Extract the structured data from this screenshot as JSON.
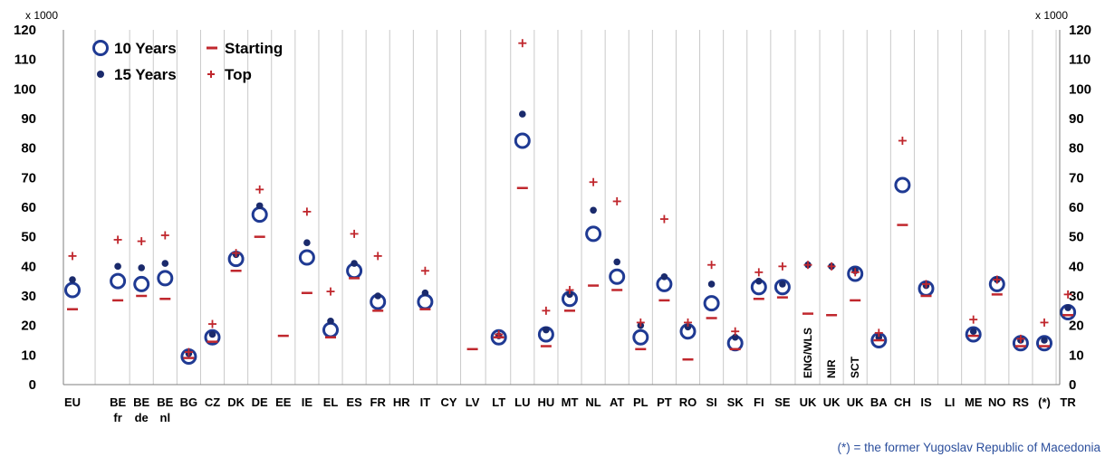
{
  "chart_data": {
    "type": "scatter",
    "unit_left": "x 1000",
    "unit_right": "x 1000",
    "ylim": [
      0,
      120
    ],
    "yticks": [
      0,
      10,
      20,
      30,
      40,
      50,
      60,
      70,
      80,
      90,
      100,
      110,
      120
    ],
    "grid": "vertical",
    "legend_position": "top-left",
    "categories": [
      "EU",
      "BE fr",
      "BE de",
      "BE nl",
      "BG",
      "CZ",
      "DK",
      "DE",
      "EE",
      "IE",
      "EL",
      "ES",
      "FR",
      "HR",
      "IT",
      "CY",
      "LV",
      "LT",
      "LU",
      "HU",
      "MT",
      "NL",
      "AT",
      "PL",
      "PT",
      "RO",
      "SI",
      "SK",
      "FI",
      "SE",
      "UK ENG/WLS",
      "UK NIR",
      "UK SCT",
      "BA",
      "CH",
      "IS",
      "LI",
      "ME",
      "NO",
      "RS",
      "(*)",
      "TR"
    ],
    "category_labels": [
      [
        "EU"
      ],
      [
        "BE",
        "fr"
      ],
      [
        "BE",
        "de"
      ],
      [
        "BE",
        "nl"
      ],
      [
        "BG"
      ],
      [
        "CZ"
      ],
      [
        "DK"
      ],
      [
        "DE"
      ],
      [
        "EE"
      ],
      [
        "IE"
      ],
      [
        "EL"
      ],
      [
        "ES"
      ],
      [
        "FR"
      ],
      [
        "HR"
      ],
      [
        "IT"
      ],
      [
        "CY"
      ],
      [
        "LV"
      ],
      [
        "LT"
      ],
      [
        "LU"
      ],
      [
        "HU"
      ],
      [
        "MT"
      ],
      [
        "NL"
      ],
      [
        "AT"
      ],
      [
        "PL"
      ],
      [
        "PT"
      ],
      [
        "RO"
      ],
      [
        "SI"
      ],
      [
        "SK"
      ],
      [
        "FI"
      ],
      [
        "SE"
      ],
      [
        "UK"
      ],
      [
        "UK"
      ],
      [
        "UK"
      ],
      [
        "BA"
      ],
      [
        "CH"
      ],
      [
        "IS"
      ],
      [
        "LI"
      ],
      [
        "ME"
      ],
      [
        "NO"
      ],
      [
        "RS"
      ],
      [
        "(*)"
      ],
      [
        "TR"
      ]
    ],
    "vertical_annotations": [
      {
        "category_index": 30,
        "text": "ENG/WLS"
      },
      {
        "category_index": 31,
        "text": "NIR"
      },
      {
        "category_index": 32,
        "text": "SCT"
      }
    ],
    "series": [
      {
        "name": "10 Years",
        "marker": "open-circle",
        "color": "#1f3a93",
        "values": [
          32,
          35,
          34,
          36,
          9.5,
          16,
          42.5,
          57.5,
          null,
          43,
          18.5,
          38.5,
          28,
          null,
          28,
          null,
          null,
          16,
          82.5,
          17,
          29,
          51,
          36.5,
          16,
          34,
          18,
          27.5,
          14,
          33,
          33,
          null,
          null,
          37.5,
          15,
          67.5,
          32.5,
          null,
          17,
          34,
          14,
          14,
          24.5
        ]
      },
      {
        "name": "15 Years",
        "marker": "dot",
        "color": "#1a2a6c",
        "values": [
          35.5,
          40,
          39.5,
          41,
          10.5,
          17,
          44,
          60.5,
          null,
          48,
          21.5,
          41,
          30,
          null,
          31,
          null,
          null,
          16.5,
          91.5,
          18.5,
          30.5,
          59,
          41.5,
          20,
          36.5,
          19.5,
          34,
          16,
          35,
          34,
          40.5,
          40,
          38.5,
          16,
          null,
          33.5,
          null,
          18,
          35.5,
          15,
          15,
          26
        ]
      },
      {
        "name": "Starting",
        "marker": "dash",
        "color": "#c0272d",
        "values": [
          25.5,
          28.5,
          30,
          29,
          9,
          14.5,
          38.5,
          50,
          16.5,
          31,
          16,
          36,
          25,
          null,
          25.5,
          null,
          12,
          16,
          66.5,
          13,
          25,
          33.5,
          32,
          12,
          28.5,
          8.5,
          22.5,
          12,
          29,
          29.5,
          24,
          23.5,
          28.5,
          15,
          54,
          30,
          null,
          16.5,
          30.5,
          13,
          13,
          23.5
        ]
      },
      {
        "name": "Top",
        "marker": "plus",
        "color": "#c0272d",
        "values": [
          43.5,
          49,
          48.5,
          50.5,
          11,
          20.5,
          44.5,
          66,
          null,
          58.5,
          31.5,
          51,
          43.5,
          null,
          38.5,
          null,
          null,
          17,
          115.5,
          25,
          32,
          68.5,
          62,
          21,
          56,
          21,
          40.5,
          18,
          38,
          40,
          40.5,
          40,
          38,
          17.5,
          82.5,
          34,
          null,
          22,
          35.5,
          15.5,
          21,
          30.5
        ]
      }
    ]
  },
  "footnote": "(*) = the former Yugoslav Republic of Macedonia"
}
